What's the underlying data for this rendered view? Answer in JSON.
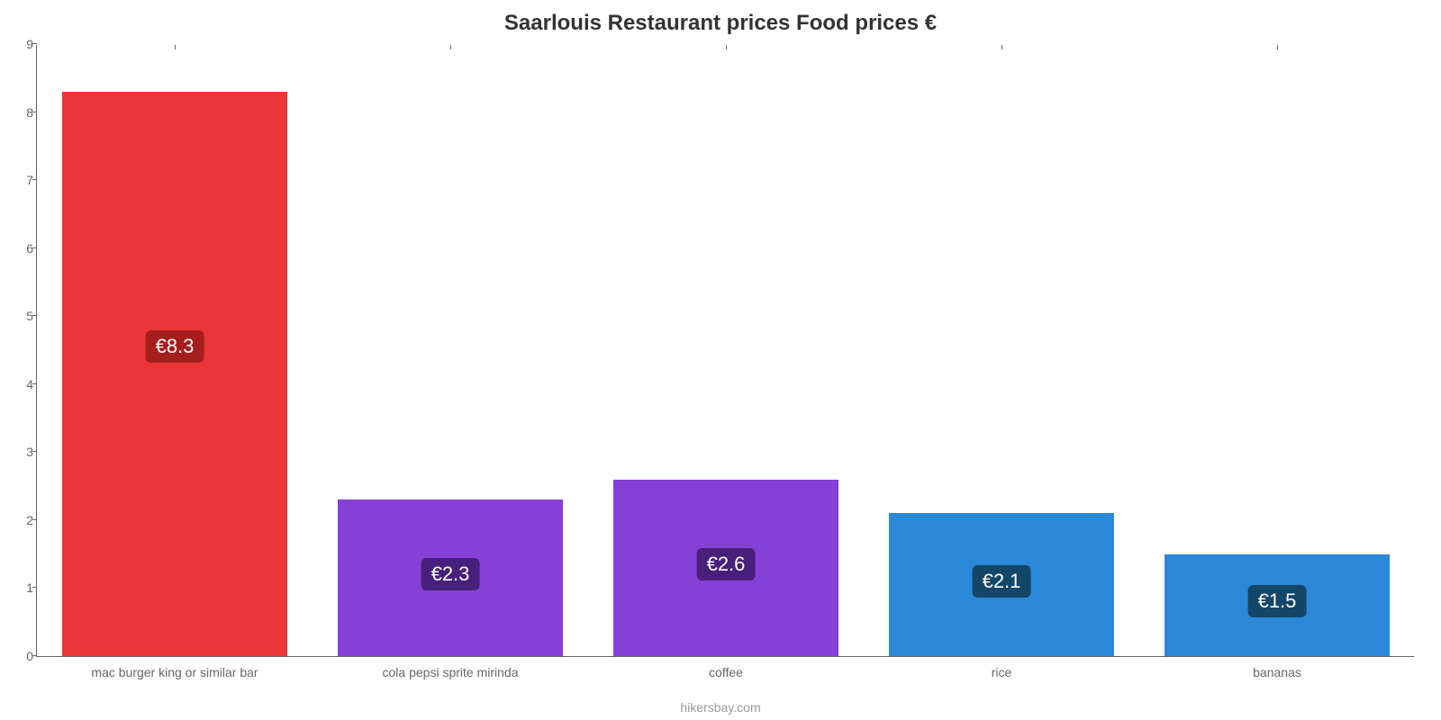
{
  "chart": {
    "type": "bar",
    "title": "Saarlouis Restaurant prices Food prices €",
    "title_fontsize": 24,
    "title_color": "#333333",
    "attribution": "hikersbay.com",
    "attribution_fontsize": 14,
    "attribution_color": "#999999",
    "background_color": "#ffffff",
    "axis_color": "#666666",
    "tick_label_color": "#666666",
    "tick_fontsize": 14,
    "ylim": [
      0,
      9
    ],
    "ytick_step": 1,
    "bar_width_ratio": 0.82,
    "value_label_fontsize": 22,
    "categories": [
      "mac burger king or similar bar",
      "cola pepsi sprite mirinda",
      "coffee",
      "rice",
      "bananas"
    ],
    "values": [
      8.3,
      2.3,
      2.6,
      2.1,
      1.5
    ],
    "value_labels": [
      "€8.3",
      "€2.3",
      "€2.6",
      "€2.1",
      "€1.5"
    ],
    "bar_colors": [
      "#eb3639",
      "#8540d6",
      "#8540d6",
      "#2b88d8",
      "#2b88d8"
    ],
    "label_bg_colors": [
      "#a51d1d",
      "#46207a",
      "#46207a",
      "#144667",
      "#144667"
    ]
  }
}
